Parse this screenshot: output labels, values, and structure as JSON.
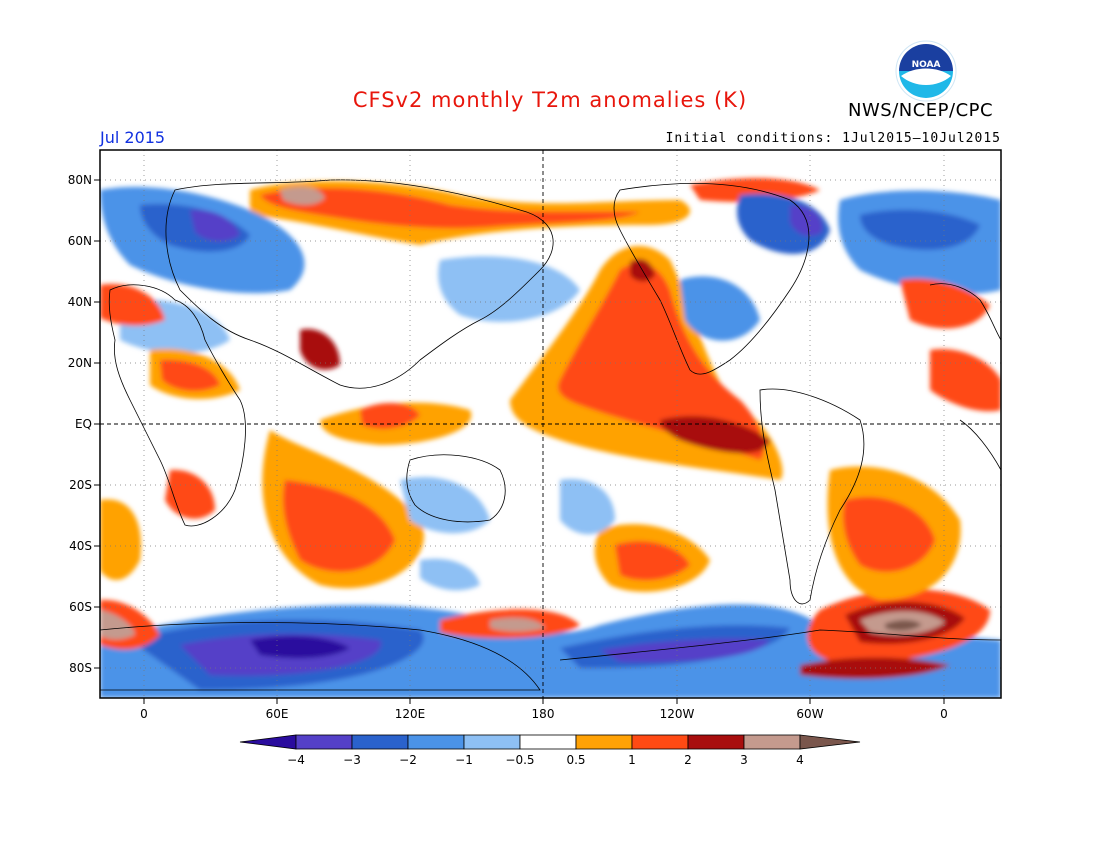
{
  "title": "CFSv2 monthly T2m anomalies (K)",
  "agency": "NWS/NCEP/CPC",
  "logo_text": "NOAA",
  "valid_month": "Jul 2015",
  "initial_conditions": "Initial conditions: 1Jul2015–10Jul2015",
  "axes": {
    "lat_labels": [
      "80N",
      "60N",
      "40N",
      "20N",
      "EQ",
      "20S",
      "40S",
      "60S",
      "80S"
    ],
    "lon_labels": [
      "0",
      "60E",
      "120E",
      "180",
      "120W",
      "60W",
      "0"
    ]
  },
  "colorbar": {
    "labels": [
      "−4",
      "−3",
      "−2",
      "−1",
      "−0.5",
      "0.5",
      "1",
      "2",
      "3",
      "4"
    ],
    "colors": {
      "lt_m4": "#2a0c9e",
      "m4_m3": "#5440c8",
      "m3_m2": "#2a62cc",
      "m2_m1": "#4b93e8",
      "m1_m05": "#8ec0f4",
      "m05_05": "#ffffff",
      "05_1": "#ffa206",
      "1_2": "#ff4a14",
      "2_3": "#a80e0e",
      "3_4": "#c49a8e",
      "gt_4": "#7a564c"
    }
  }
}
